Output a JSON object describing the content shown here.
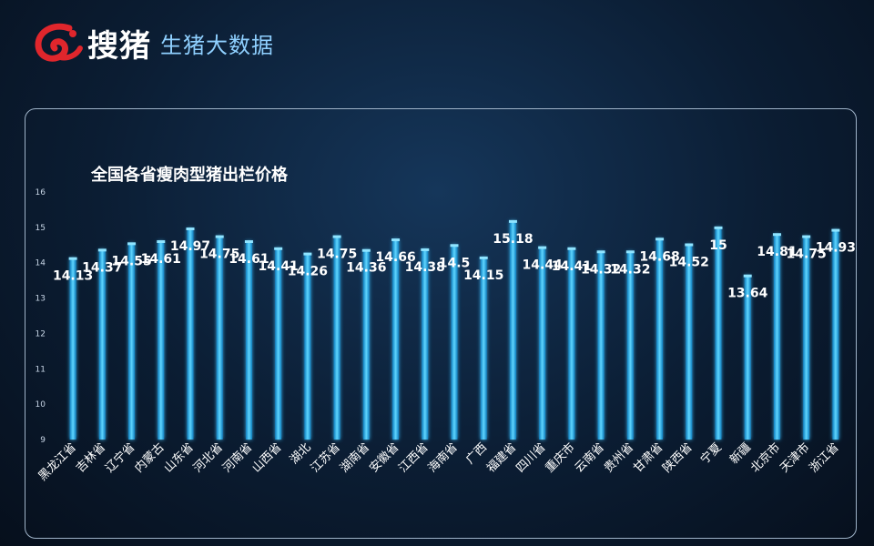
{
  "brand": {
    "name": "搜猪",
    "subtitle": "生猪大数据",
    "logo_icon": "brand-logo-icon"
  },
  "colors": {
    "bar": "#29b8f0",
    "bar_glow": "#8fe4ff",
    "label": "#ffffff",
    "tick": "#c8d6e6",
    "accent_logo": "#e0262c"
  },
  "chart_data": {
    "type": "bar",
    "title": "全国各省瘦肉型猪出栏价格",
    "xlabel": "",
    "ylabel": "",
    "ylim": [
      9,
      16
    ],
    "yticks": [
      9,
      10,
      11,
      12,
      13,
      14,
      15,
      16
    ],
    "grid": false,
    "categories": [
      "黑龙江省",
      "吉林省",
      "辽宁省",
      "内蒙古",
      "山东省",
      "河北省",
      "河南省",
      "山西省",
      "湖北",
      "江苏省",
      "湖南省",
      "安徽省",
      "江西省",
      "海南省",
      "广西",
      "福建省",
      "四川省",
      "重庆市",
      "云南省",
      "贵州省",
      "甘肃省",
      "陕西省",
      "宁夏",
      "新疆",
      "北京市",
      "天津市",
      "浙江省"
    ],
    "values": [
      14.13,
      14.37,
      14.55,
      14.61,
      14.97,
      14.75,
      14.61,
      14.41,
      14.26,
      14.75,
      14.36,
      14.66,
      14.38,
      14.5,
      14.15,
      15.18,
      14.44,
      14.41,
      14.32,
      14.32,
      14.68,
      14.52,
      15,
      13.64,
      14.81,
      14.75,
      14.93
    ],
    "value_labels": [
      "14.13",
      "14.37",
      "14.55",
      "14.61",
      "14.97",
      "14.75",
      "14.61",
      "14.41",
      "14.26",
      "14.75",
      "14.36",
      "14.66",
      "14.38",
      "14.5",
      "14.15",
      "15.18",
      "14.44",
      "14.41",
      "14.32",
      "14.32",
      "14.68",
      "14.52",
      "15",
      "13.64",
      "14.81",
      "14.75",
      "14.93"
    ]
  }
}
